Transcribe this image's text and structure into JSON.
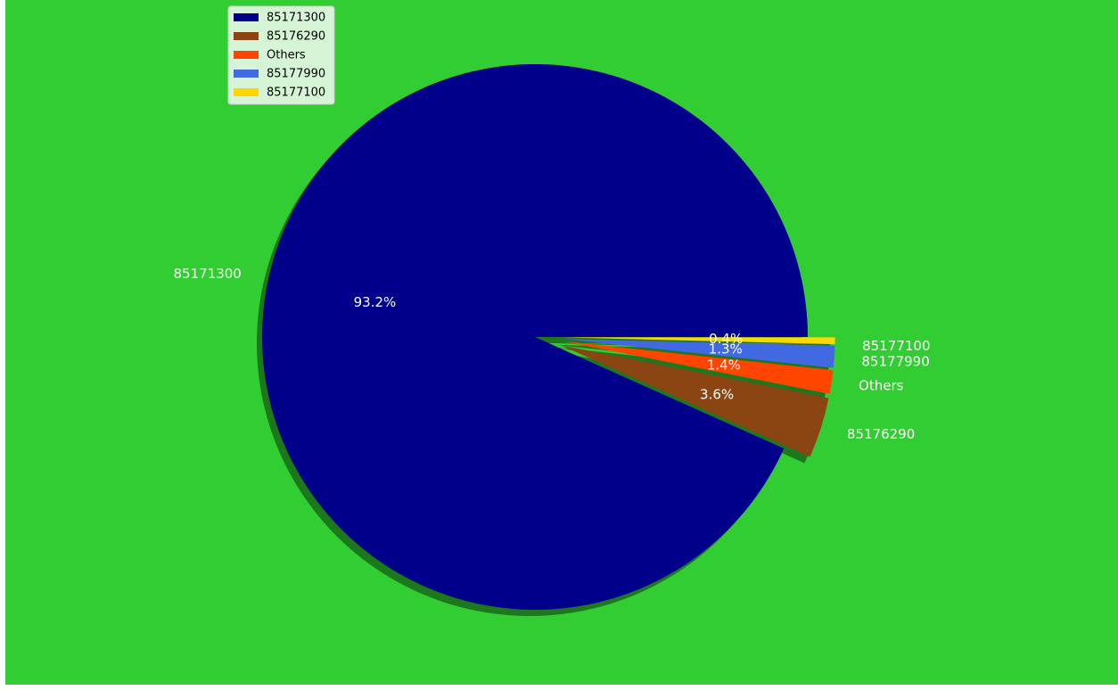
{
  "chart_data": {
    "type": "pie",
    "title": "",
    "background_color": "#32cd32",
    "shadow": true,
    "legend_placement": "upper-left",
    "slices": [
      {
        "label": "85171300",
        "value": 93.2,
        "pct_label": "93.2%",
        "color": "#00008b",
        "exploded": false
      },
      {
        "label": "85176290",
        "value": 3.6,
        "pct_label": "3.6%",
        "color": "#8b4513",
        "exploded": true
      },
      {
        "label": "Others",
        "value": 1.4,
        "pct_label": "1.4%",
        "color": "#ff4500",
        "exploded": true
      },
      {
        "label": "85177990",
        "value": 1.3,
        "pct_label": "1.3%",
        "color": "#4169e1",
        "exploded": true
      },
      {
        "label": "85177100",
        "value": 0.4,
        "pct_label": "0.4%",
        "color": "#ffd700",
        "exploded": true
      }
    ]
  }
}
